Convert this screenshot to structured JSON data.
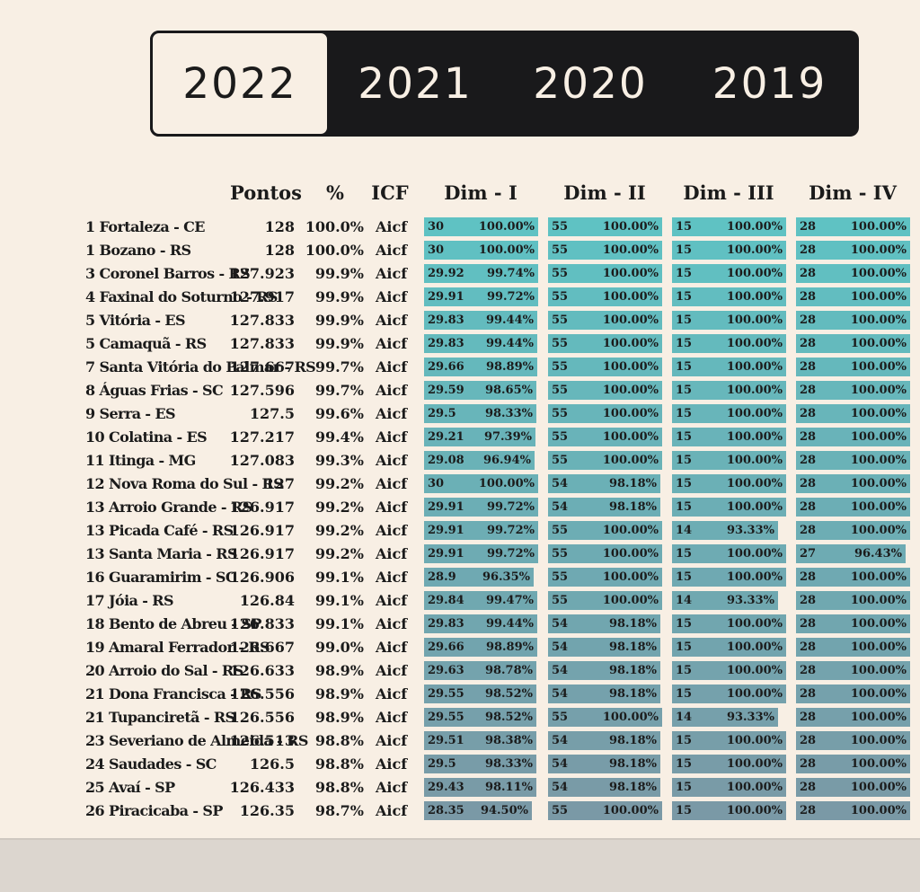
{
  "years": [
    "2022",
    "2021",
    "2020",
    "2019"
  ],
  "active_year": "2022",
  "headers": {
    "pontos": "Pontos",
    "pct": "%",
    "icf": "ICF",
    "dims": [
      "Dim - I",
      "Dim - II",
      "Dim - III",
      "Dim - IV"
    ]
  },
  "colors": {
    "background": "#f8efe4",
    "tab_bar": "#19191b",
    "bar_top": "#5fc2c3",
    "bar_bottom": "#7a99a6"
  },
  "dim_max": [
    30,
    55,
    15,
    28
  ],
  "rows": [
    {
      "name": "1  Fortaleza - CE",
      "pontos": "128",
      "pct": "100.0%",
      "icf": "Aicf",
      "dims": [
        {
          "v": "30",
          "p": "100.00%",
          "ratio": 1.0
        },
        {
          "v": "55",
          "p": "100.00%",
          "ratio": 1.0
        },
        {
          "v": "15",
          "p": "100.00%",
          "ratio": 1.0
        },
        {
          "v": "28",
          "p": "100.00%",
          "ratio": 1.0
        }
      ]
    },
    {
      "name": "1  Bozano - RS",
      "pontos": "128",
      "pct": "100.0%",
      "icf": "Aicf",
      "dims": [
        {
          "v": "30",
          "p": "100.00%",
          "ratio": 1.0
        },
        {
          "v": "55",
          "p": "100.00%",
          "ratio": 1.0
        },
        {
          "v": "15",
          "p": "100.00%",
          "ratio": 1.0
        },
        {
          "v": "28",
          "p": "100.00%",
          "ratio": 1.0
        }
      ]
    },
    {
      "name": "3  Coronel Barros - RS",
      "pontos": "127.923",
      "pct": "99.9%",
      "icf": "Aicf",
      "dims": [
        {
          "v": "29.92",
          "p": "99.74%",
          "ratio": 0.9974
        },
        {
          "v": "55",
          "p": "100.00%",
          "ratio": 1.0
        },
        {
          "v": "15",
          "p": "100.00%",
          "ratio": 1.0
        },
        {
          "v": "28",
          "p": "100.00%",
          "ratio": 1.0
        }
      ]
    },
    {
      "name": "4  Faxinal do Soturno - RS",
      "pontos": "127.917",
      "pct": "99.9%",
      "icf": "Aicf",
      "dims": [
        {
          "v": "29.91",
          "p": "99.72%",
          "ratio": 0.9972
        },
        {
          "v": "55",
          "p": "100.00%",
          "ratio": 1.0
        },
        {
          "v": "15",
          "p": "100.00%",
          "ratio": 1.0
        },
        {
          "v": "28",
          "p": "100.00%",
          "ratio": 1.0
        }
      ]
    },
    {
      "name": "5  Vitória - ES",
      "pontos": "127.833",
      "pct": "99.9%",
      "icf": "Aicf",
      "dims": [
        {
          "v": "29.83",
          "p": "99.44%",
          "ratio": 0.9944
        },
        {
          "v": "55",
          "p": "100.00%",
          "ratio": 1.0
        },
        {
          "v": "15",
          "p": "100.00%",
          "ratio": 1.0
        },
        {
          "v": "28",
          "p": "100.00%",
          "ratio": 1.0
        }
      ]
    },
    {
      "name": "5  Camaquã - RS",
      "pontos": "127.833",
      "pct": "99.9%",
      "icf": "Aicf",
      "dims": [
        {
          "v": "29.83",
          "p": "99.44%",
          "ratio": 0.9944
        },
        {
          "v": "55",
          "p": "100.00%",
          "ratio": 1.0
        },
        {
          "v": "15",
          "p": "100.00%",
          "ratio": 1.0
        },
        {
          "v": "28",
          "p": "100.00%",
          "ratio": 1.0
        }
      ]
    },
    {
      "name": "7 Santa Vitória do Palmar - RS",
      "pontos": "127.667",
      "pct": "99.7%",
      "icf": "Aicf",
      "dims": [
        {
          "v": "29.66",
          "p": "98.89%",
          "ratio": 0.9889
        },
        {
          "v": "55",
          "p": "100.00%",
          "ratio": 1.0
        },
        {
          "v": "15",
          "p": "100.00%",
          "ratio": 1.0
        },
        {
          "v": "28",
          "p": "100.00%",
          "ratio": 1.0
        }
      ]
    },
    {
      "name": "8  Águas Frias - SC",
      "pontos": "127.596",
      "pct": "99.7%",
      "icf": "Aicf",
      "dims": [
        {
          "v": "29.59",
          "p": "98.65%",
          "ratio": 0.9865
        },
        {
          "v": "55",
          "p": "100.00%",
          "ratio": 1.0
        },
        {
          "v": "15",
          "p": "100.00%",
          "ratio": 1.0
        },
        {
          "v": "28",
          "p": "100.00%",
          "ratio": 1.0
        }
      ]
    },
    {
      "name": "9  Serra - ES",
      "pontos": "127.5",
      "pct": "99.6%",
      "icf": "Aicf",
      "dims": [
        {
          "v": "29.5",
          "p": "98.33%",
          "ratio": 0.9833
        },
        {
          "v": "55",
          "p": "100.00%",
          "ratio": 1.0
        },
        {
          "v": "15",
          "p": "100.00%",
          "ratio": 1.0
        },
        {
          "v": "28",
          "p": "100.00%",
          "ratio": 1.0
        }
      ]
    },
    {
      "name": "10  Colatina - ES",
      "pontos": "127.217",
      "pct": "99.4%",
      "icf": "Aicf",
      "dims": [
        {
          "v": "29.21",
          "p": "97.39%",
          "ratio": 0.9739
        },
        {
          "v": "55",
          "p": "100.00%",
          "ratio": 1.0
        },
        {
          "v": "15",
          "p": "100.00%",
          "ratio": 1.0
        },
        {
          "v": "28",
          "p": "100.00%",
          "ratio": 1.0
        }
      ]
    },
    {
      "name": "11  Itinga - MG",
      "pontos": "127.083",
      "pct": "99.3%",
      "icf": "Aicf",
      "dims": [
        {
          "v": "29.08",
          "p": "96.94%",
          "ratio": 0.9694
        },
        {
          "v": "55",
          "p": "100.00%",
          "ratio": 1.0
        },
        {
          "v": "15",
          "p": "100.00%",
          "ratio": 1.0
        },
        {
          "v": "28",
          "p": "100.00%",
          "ratio": 1.0
        }
      ]
    },
    {
      "name": "12  Nova Roma do Sul - RS",
      "pontos": "127",
      "pct": "99.2%",
      "icf": "Aicf",
      "dims": [
        {
          "v": "30",
          "p": "100.00%",
          "ratio": 1.0
        },
        {
          "v": "54",
          "p": "98.18%",
          "ratio": 0.9818
        },
        {
          "v": "15",
          "p": "100.00%",
          "ratio": 1.0
        },
        {
          "v": "28",
          "p": "100.00%",
          "ratio": 1.0
        }
      ]
    },
    {
      "name": "13  Arroio Grande - RS",
      "pontos": "126.917",
      "pct": "99.2%",
      "icf": "Aicf",
      "dims": [
        {
          "v": "29.91",
          "p": "99.72%",
          "ratio": 0.9972
        },
        {
          "v": "54",
          "p": "98.18%",
          "ratio": 0.9818
        },
        {
          "v": "15",
          "p": "100.00%",
          "ratio": 1.0
        },
        {
          "v": "28",
          "p": "100.00%",
          "ratio": 1.0
        }
      ]
    },
    {
      "name": "13  Picada Café - RS",
      "pontos": "126.917",
      "pct": "99.2%",
      "icf": "Aicf",
      "dims": [
        {
          "v": "29.91",
          "p": "99.72%",
          "ratio": 0.9972
        },
        {
          "v": "55",
          "p": "100.00%",
          "ratio": 1.0
        },
        {
          "v": "14",
          "p": "93.33%",
          "ratio": 0.9333
        },
        {
          "v": "28",
          "p": "100.00%",
          "ratio": 1.0
        }
      ]
    },
    {
      "name": "13  Santa Maria - RS",
      "pontos": "126.917",
      "pct": "99.2%",
      "icf": "Aicf",
      "dims": [
        {
          "v": "29.91",
          "p": "99.72%",
          "ratio": 0.9972
        },
        {
          "v": "55",
          "p": "100.00%",
          "ratio": 1.0
        },
        {
          "v": "15",
          "p": "100.00%",
          "ratio": 1.0
        },
        {
          "v": "27",
          "p": "96.43%",
          "ratio": 0.9643
        }
      ]
    },
    {
      "name": "16  Guaramirim - SC",
      "pontos": "126.906",
      "pct": "99.1%",
      "icf": "Aicf",
      "dims": [
        {
          "v": "28.9",
          "p": "96.35%",
          "ratio": 0.9635
        },
        {
          "v": "55",
          "p": "100.00%",
          "ratio": 1.0
        },
        {
          "v": "15",
          "p": "100.00%",
          "ratio": 1.0
        },
        {
          "v": "28",
          "p": "100.00%",
          "ratio": 1.0
        }
      ]
    },
    {
      "name": "17  Jóia - RS",
      "pontos": "126.84",
      "pct": "99.1%",
      "icf": "Aicf",
      "dims": [
        {
          "v": "29.84",
          "p": "99.47%",
          "ratio": 0.9947
        },
        {
          "v": "55",
          "p": "100.00%",
          "ratio": 1.0
        },
        {
          "v": "14",
          "p": "93.33%",
          "ratio": 0.9333
        },
        {
          "v": "28",
          "p": "100.00%",
          "ratio": 1.0
        }
      ]
    },
    {
      "name": "18  Bento de Abreu - SP",
      "pontos": "126.833",
      "pct": "99.1%",
      "icf": "Aicf",
      "dims": [
        {
          "v": "29.83",
          "p": "99.44%",
          "ratio": 0.9944
        },
        {
          "v": "54",
          "p": "98.18%",
          "ratio": 0.9818
        },
        {
          "v": "15",
          "p": "100.00%",
          "ratio": 1.0
        },
        {
          "v": "28",
          "p": "100.00%",
          "ratio": 1.0
        }
      ]
    },
    {
      "name": "19  Amaral Ferrador - RS",
      "pontos": "126.667",
      "pct": "99.0%",
      "icf": "Aicf",
      "dims": [
        {
          "v": "29.66",
          "p": "98.89%",
          "ratio": 0.9889
        },
        {
          "v": "54",
          "p": "98.18%",
          "ratio": 0.9818
        },
        {
          "v": "15",
          "p": "100.00%",
          "ratio": 1.0
        },
        {
          "v": "28",
          "p": "100.00%",
          "ratio": 1.0
        }
      ]
    },
    {
      "name": "20  Arroio do Sal - RS",
      "pontos": "126.633",
      "pct": "98.9%",
      "icf": "Aicf",
      "dims": [
        {
          "v": "29.63",
          "p": "98.78%",
          "ratio": 0.9878
        },
        {
          "v": "54",
          "p": "98.18%",
          "ratio": 0.9818
        },
        {
          "v": "15",
          "p": "100.00%",
          "ratio": 1.0
        },
        {
          "v": "28",
          "p": "100.00%",
          "ratio": 1.0
        }
      ]
    },
    {
      "name": "21  Dona Francisca - RS",
      "pontos": "126.556",
      "pct": "98.9%",
      "icf": "Aicf",
      "dims": [
        {
          "v": "29.55",
          "p": "98.52%",
          "ratio": 0.9852
        },
        {
          "v": "54",
          "p": "98.18%",
          "ratio": 0.9818
        },
        {
          "v": "15",
          "p": "100.00%",
          "ratio": 1.0
        },
        {
          "v": "28",
          "p": "100.00%",
          "ratio": 1.0
        }
      ]
    },
    {
      "name": "21  Tupanciretã - RS",
      "pontos": "126.556",
      "pct": "98.9%",
      "icf": "Aicf",
      "dims": [
        {
          "v": "29.55",
          "p": "98.52%",
          "ratio": 0.9852
        },
        {
          "v": "55",
          "p": "100.00%",
          "ratio": 1.0
        },
        {
          "v": "14",
          "p": "93.33%",
          "ratio": 0.9333
        },
        {
          "v": "28",
          "p": "100.00%",
          "ratio": 1.0
        }
      ]
    },
    {
      "name": "23 Severiano de Almeida - RS",
      "pontos": "126.513",
      "pct": "98.8%",
      "icf": "Aicf",
      "dims": [
        {
          "v": "29.51",
          "p": "98.38%",
          "ratio": 0.9838
        },
        {
          "v": "54",
          "p": "98.18%",
          "ratio": 0.9818
        },
        {
          "v": "15",
          "p": "100.00%",
          "ratio": 1.0
        },
        {
          "v": "28",
          "p": "100.00%",
          "ratio": 1.0
        }
      ]
    },
    {
      "name": "24  Saudades - SC",
      "pontos": "126.5",
      "pct": "98.8%",
      "icf": "Aicf",
      "dims": [
        {
          "v": "29.5",
          "p": "98.33%",
          "ratio": 0.9833
        },
        {
          "v": "54",
          "p": "98.18%",
          "ratio": 0.9818
        },
        {
          "v": "15",
          "p": "100.00%",
          "ratio": 1.0
        },
        {
          "v": "28",
          "p": "100.00%",
          "ratio": 1.0
        }
      ]
    },
    {
      "name": "25  Avaí - SP",
      "pontos": "126.433",
      "pct": "98.8%",
      "icf": "Aicf",
      "dims": [
        {
          "v": "29.43",
          "p": "98.11%",
          "ratio": 0.9811
        },
        {
          "v": "54",
          "p": "98.18%",
          "ratio": 0.9818
        },
        {
          "v": "15",
          "p": "100.00%",
          "ratio": 1.0
        },
        {
          "v": "28",
          "p": "100.00%",
          "ratio": 1.0
        }
      ]
    },
    {
      "name": "26  Piracicaba - SP",
      "pontos": "126.35",
      "pct": "98.7%",
      "icf": "Aicf",
      "dims": [
        {
          "v": "28.35",
          "p": "94.50%",
          "ratio": 0.945
        },
        {
          "v": "55",
          "p": "100.00%",
          "ratio": 1.0
        },
        {
          "v": "15",
          "p": "100.00%",
          "ratio": 1.0
        },
        {
          "v": "28",
          "p": "100.00%",
          "ratio": 1.0
        }
      ]
    }
  ]
}
